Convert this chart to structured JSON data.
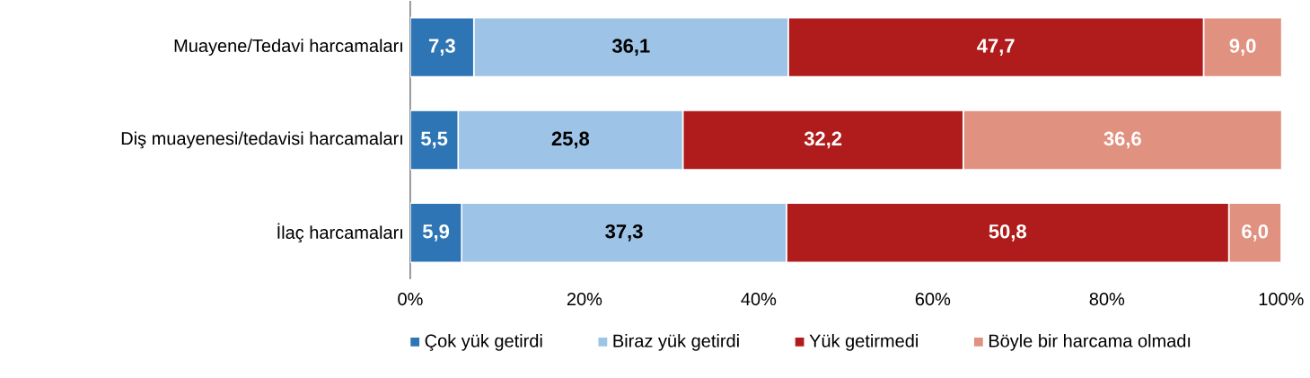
{
  "chart_data": {
    "type": "bar",
    "orientation": "horizontal",
    "stacked": true,
    "legend": "bottom",
    "categories": [
      "Muayene/Tedavi harcamaları",
      "Diş muayenesi/tedavisi harcamaları",
      "İlaç harcamaları"
    ],
    "series": [
      {
        "name": "Çok yük getirdi",
        "color": "#2e75b6",
        "values": [
          7.3,
          5.5,
          5.9
        ],
        "value_labels": [
          "7,3",
          "5,5",
          "5,9"
        ]
      },
      {
        "name": "Biraz yük getirdi",
        "color": "#9dc3e6",
        "values": [
          36.1,
          25.8,
          37.3
        ],
        "value_labels": [
          "36,1",
          "25,8",
          "37,3"
        ]
      },
      {
        "name": "Yük getirmedi",
        "color": "#b01c1c",
        "values": [
          47.7,
          32.2,
          50.8
        ],
        "value_labels": [
          "47,7",
          "32,2",
          "50,8"
        ]
      },
      {
        "name": "Böyle bir harcama olmadı",
        "color": "#e0917f",
        "values": [
          9.0,
          36.6,
          6.0
        ],
        "value_labels": [
          "9,0",
          "36,6",
          "6,0"
        ]
      }
    ],
    "xlim": [
      0,
      100
    ],
    "xticks": [
      {
        "value": 0,
        "label": "0%"
      },
      {
        "value": 20,
        "label": "20%"
      },
      {
        "value": 40,
        "label": "40%"
      },
      {
        "value": 60,
        "label": "60%"
      },
      {
        "value": 80,
        "label": "80%"
      },
      {
        "value": 100,
        "label": "100%"
      }
    ]
  }
}
